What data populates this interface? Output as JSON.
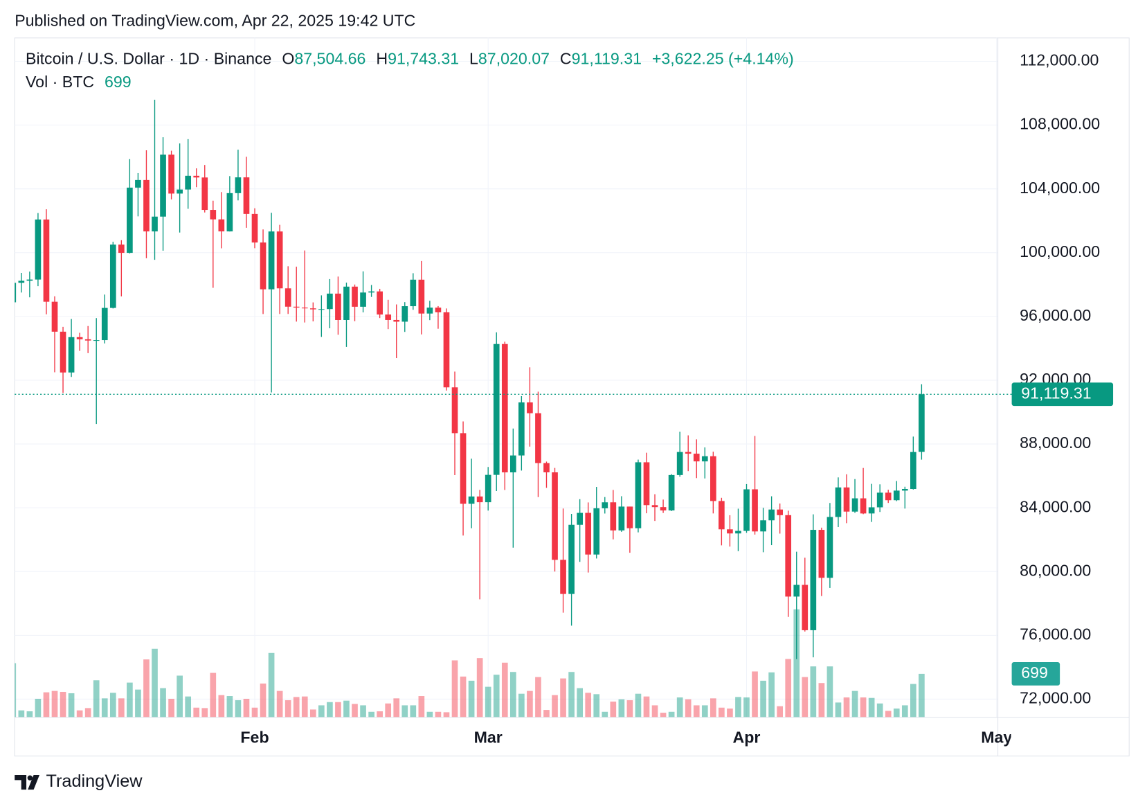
{
  "chart_data": {
    "type": "candlestick",
    "title": "Published on TradingView.com, Apr 22, 2025 19:42 UTC",
    "legend": {
      "symbol": "Bitcoin / U.S. Dollar · 1D · Binance",
      "open_label": "O",
      "open": "87,504.66",
      "high_label": "H",
      "high": "91,743.31",
      "low_label": "L",
      "low": "87,020.07",
      "close_label": "C",
      "close": "91,119.31",
      "change": "+3,622.25 (+4.14%)",
      "volume_label": "Vol · BTC"
    },
    "brand": "TradingView",
    "up_color": "#089981",
    "down_color": "#f23645",
    "open": [
      96886,
      98107,
      98236,
      98314,
      102078,
      96922,
      95043,
      92484,
      94701,
      94566,
      94488,
      94516,
      96534,
      100504,
      99987,
      104078,
      104557,
      101331,
      102260,
      106144,
      103706,
      103960,
      104820,
      104714,
      102682,
      102087,
      101332,
      103733,
      104722,
      102429,
      100635,
      97700,
      101328,
      97763,
      96612,
      96554,
      96506,
      96444,
      96462,
      97430,
      95778,
      97869,
      96608,
      97500,
      97569,
      96118,
      95780,
      95671,
      96644,
      98305,
      96181,
      96551,
      96258,
      91552,
      88680,
      84250,
      84708,
      84349,
      86064,
      94270,
      86221,
      87281,
      90607,
      89931,
      86801,
      86222,
      80735,
      78595,
      82932,
      83680,
      81067,
      83968,
      84343,
      82579,
      84075,
      82718,
      86854,
      84167,
      84043,
      83832,
      86054,
      87498,
      87392,
      86909,
      87232,
      84424,
      82648,
      82390,
      82550,
      85158,
      82516,
      83213,
      83890,
      83537,
      78430,
      79164,
      76322,
      82615,
      79607,
      83423,
      85276,
      83760,
      84591,
      83643,
      84030,
      84947,
      84474,
      85077,
      85179,
      87504.66
    ],
    "high": [
      98976,
      98734,
      98813,
      102482,
      102724,
      97258,
      95350,
      95836,
      94977,
      95400,
      95900,
      97371,
      100681,
      100781,
      105865,
      104988,
      106422,
      109588,
      107240,
      106394,
      106850,
      107120,
      105286,
      105500,
      103260,
      103800,
      104800,
      106457,
      106012,
      102783,
      101456,
      102500,
      101745,
      99149,
      99120,
      100137,
      96880,
      97323,
      98345,
      98500,
      98119,
      98000,
      98826,
      97972,
      97732,
      97046,
      96753,
      96899,
      98711,
      99475,
      96980,
      96650,
      96500,
      92540,
      89414,
      87078,
      85120,
      86558,
      95000,
      94416,
      88967,
      91000,
      92810,
      91283,
      86897,
      86500,
      83955,
      83617,
      84539,
      84336,
      85309,
      84672,
      85117,
      84725,
      84075,
      87022,
      87453,
      84850,
      84513,
      86106,
      88765,
      88543,
      88292,
      87786,
      87515,
      84624,
      83534,
      83943,
      85487,
      88500,
      83998,
      84720,
      84266,
      83817,
      81243,
      80867,
      83588,
      82753,
      84300,
      85905,
      86100,
      85799,
      86496,
      85500,
      85470,
      85132,
      85677,
      85320,
      88465,
      91743.31
    ],
    "low": [
      96100,
      97500,
      97200,
      97900,
      96132,
      92500,
      91203,
      92206,
      93840,
      93700,
      89256,
      94306,
      96500,
      97255,
      99950,
      102277,
      99651,
      99550,
      100119,
      103339,
      101262,
      102750,
      104106,
      102520,
      97795,
      100272,
      101328,
      103278,
      101560,
      100279,
      96150,
      91231,
      96150,
      96155,
      95676,
      95620,
      95688,
      94713,
      95256,
      94850,
      94088,
      95700,
      96252,
      97223,
      95900,
      95205,
      93388,
      95029,
      96415,
      94871,
      95770,
      95227,
      91350,
      86050,
      82256,
      82716,
      78258,
      83824,
      85050,
      85117,
      81500,
      86334,
      87836,
      84667,
      85248,
      80000,
      77420,
      76606,
      80607,
      79939,
      80818,
      83639,
      82017,
      82492,
      81180,
      82457,
      83655,
      83175,
      83674,
      83795,
      85946,
      86300,
      85861,
      85837,
      83645,
      81644,
      81565,
      81279,
      82429,
      82320,
      81211,
      81659,
      82379,
      77153,
      74508,
      76239,
      74620,
      78464,
      78972,
      82792,
      83034,
      83678,
      83600,
      83111,
      83736,
      84303,
      84418,
      83949,
      85144,
      87020.07
    ],
    "close": [
      98107,
      98236,
      98314,
      102078,
      96922,
      95043,
      92484,
      94701,
      94566,
      94488,
      94516,
      96534,
      100504,
      99987,
      104078,
      104557,
      101331,
      102260,
      106144,
      103706,
      103960,
      104820,
      104714,
      102682,
      102087,
      101332,
      103733,
      104722,
      102429,
      100635,
      97700,
      101328,
      97763,
      96612,
      96554,
      96506,
      96444,
      96462,
      97430,
      95778,
      97869,
      96608,
      97500,
      97569,
      96118,
      95780,
      95671,
      96644,
      98305,
      96181,
      96551,
      96258,
      91552,
      88680,
      84250,
      84708,
      84349,
      86064,
      94270,
      86220,
      87281,
      90607,
      89931,
      86801,
      86222,
      80734,
      78595,
      82932,
      83680,
      81067,
      83968,
      84343,
      82579,
      84075,
      82718,
      86854,
      84167,
      84043,
      83832,
      86054,
      87498,
      87392,
      86909,
      87232,
      84424,
      82648,
      82390,
      82550,
      85158,
      82516,
      83213,
      83890,
      83537,
      78430,
      79164,
      76322,
      82615,
      79607,
      83423,
      85276,
      83760,
      84591,
      83643,
      84030,
      84947,
      84474,
      85077,
      85179,
      87497,
      91119.31
    ],
    "volume": [
      870,
      112,
      97,
      298,
      402,
      424,
      409,
      387,
      112,
      149,
      595,
      305,
      394,
      305,
      558,
      446,
      930,
      1101,
      469,
      298,
      670,
      335,
      156,
      149,
      714,
      357,
      342,
      275,
      298,
      156,
      543,
      1034,
      424,
      275,
      327,
      335,
      126,
      193,
      245,
      245,
      268,
      216,
      193,
      89,
      97,
      223,
      305,
      193,
      193,
      342,
      89,
      89,
      82,
      915,
      655,
      588,
      952,
      491,
      684,
      878,
      729,
      379,
      424,
      647,
      119,
      357,
      625,
      729,
      469,
      394,
      372,
      89,
      253,
      290,
      275,
      379,
      335,
      193,
      74,
      89,
      320,
      290,
      193,
      193,
      305,
      156,
      141,
      327,
      320,
      737,
      588,
      722,
      179,
      937,
      1734,
      647,
      818,
      551,
      818,
      238,
      320,
      424,
      320,
      312,
      223,
      104,
      141,
      193,
      536,
      699
    ],
    "ylim": [
      70856,
      113465
    ],
    "yticks": [
      {
        "value": 72000,
        "label": "72,000.00"
      },
      {
        "value": 76000,
        "label": "76,000.00"
      },
      {
        "value": 80000,
        "label": "80,000.00"
      },
      {
        "value": 84000,
        "label": "84,000.00"
      },
      {
        "value": 88000,
        "label": "88,000.00"
      },
      {
        "value": 92000,
        "label": "92,000.00"
      },
      {
        "value": 96000,
        "label": "96,000.00"
      },
      {
        "value": 100000,
        "label": "100,000.00"
      },
      {
        "value": 104000,
        "label": "104,000.00"
      },
      {
        "value": 108000,
        "label": "108,000.00"
      },
      {
        "value": 112000,
        "label": "112,000.00"
      }
    ],
    "xlim": [
      0.2,
      118.15
    ],
    "xticks": [
      {
        "value": 29,
        "label": "Feb"
      },
      {
        "value": 57,
        "label": "Mar"
      },
      {
        "value": 88,
        "label": "Apr"
      },
      {
        "value": 118,
        "label": "May"
      }
    ],
    "grid": true
  }
}
